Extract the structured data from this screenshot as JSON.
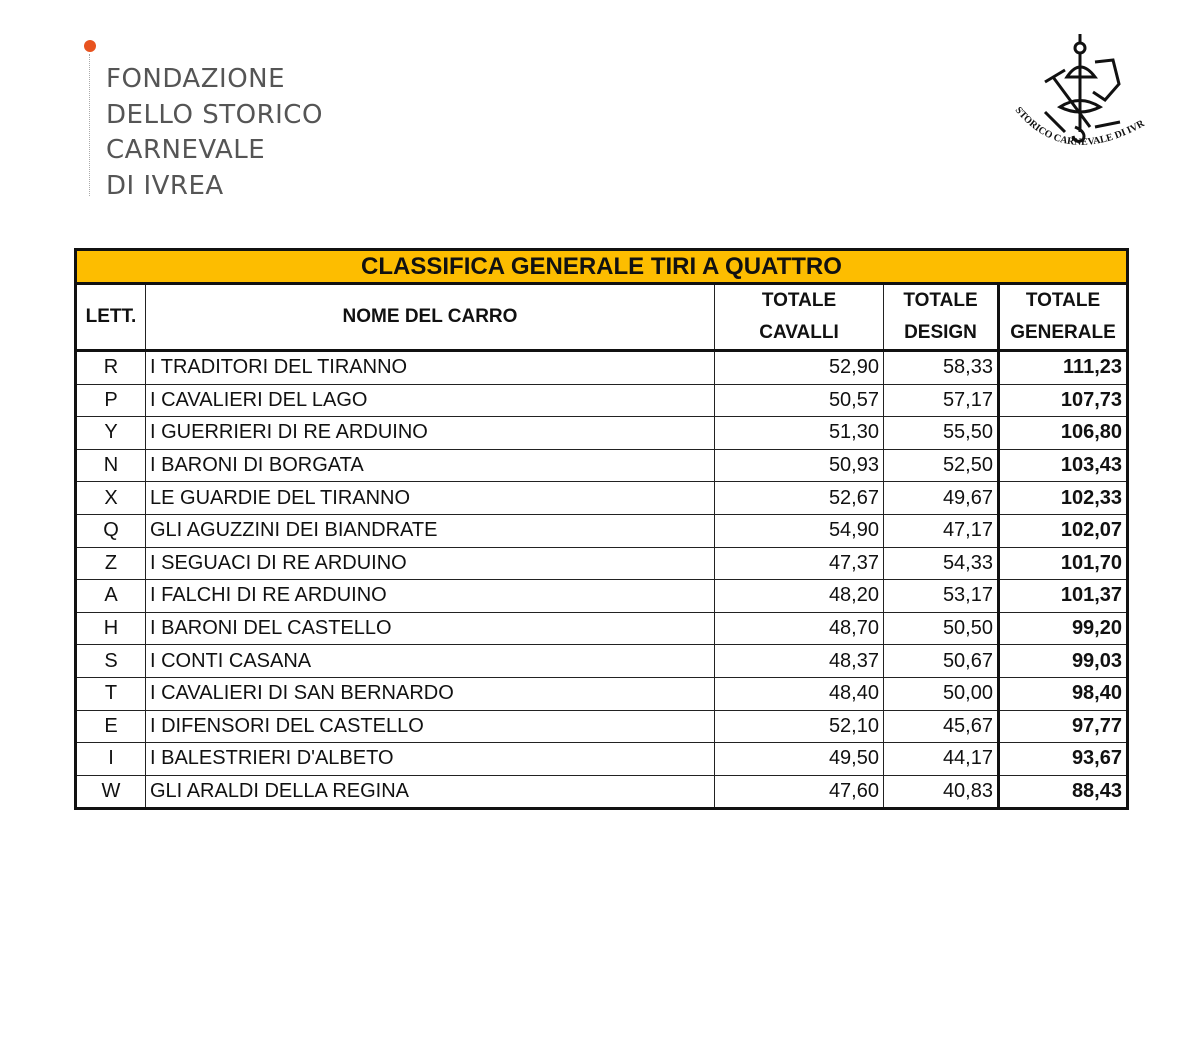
{
  "header": {
    "org_lines": [
      "FONDAZIONE",
      "DELLO STORICO",
      "CARNEVALE",
      "DI IVREA"
    ],
    "accent_color": "#e8531f",
    "seal_text": "STORICO CARNEVALE DI IVREA"
  },
  "table": {
    "title": "CLASSIFICA GENERALE TIRI A QUATTRO",
    "title_bg": "#fdbd00",
    "columns": {
      "lett": "LETT.",
      "nome": "NOME DEL CARRO",
      "cavalli": [
        "TOTALE",
        "CAVALLI"
      ],
      "design": [
        "TOTALE",
        "DESIGN"
      ],
      "generale": [
        "TOTALE",
        "GENERALE"
      ]
    },
    "rows": [
      [
        "R",
        "I TRADITORI DEL TIRANNO",
        "52,90",
        "58,33",
        "111,23"
      ],
      [
        "P",
        "I CAVALIERI DEL LAGO",
        "50,57",
        "57,17",
        "107,73"
      ],
      [
        "Y",
        "I GUERRIERI DI RE ARDUINO",
        "51,30",
        "55,50",
        "106,80"
      ],
      [
        "N",
        "I BARONI DI BORGATA",
        "50,93",
        "52,50",
        "103,43"
      ],
      [
        "X",
        "LE GUARDIE DEL TIRANNO",
        "52,67",
        "49,67",
        "102,33"
      ],
      [
        "Q",
        "GLI AGUZZINI DEI BIANDRATE",
        "54,90",
        "47,17",
        "102,07"
      ],
      [
        "Z",
        "I SEGUACI DI RE ARDUINO",
        "47,37",
        "54,33",
        "101,70"
      ],
      [
        "A",
        "I FALCHI DI RE ARDUINO",
        "48,20",
        "53,17",
        "101,37"
      ],
      [
        "H",
        "I BARONI DEL CASTELLO",
        "48,70",
        "50,50",
        "99,20"
      ],
      [
        "S",
        "I CONTI CASANA",
        "48,37",
        "50,67",
        "99,03"
      ],
      [
        "T",
        "I CAVALIERI DI SAN BERNARDO",
        "48,40",
        "50,00",
        "98,40"
      ],
      [
        "E",
        "I DIFENSORI DEL CASTELLO",
        "52,10",
        "45,67",
        "97,77"
      ],
      [
        "I",
        "I BALESTRIERI D'ALBETO",
        "49,50",
        "44,17",
        "93,67"
      ],
      [
        "W",
        "GLI ARALDI DELLA REGINA",
        "47,60",
        "40,83",
        "88,43"
      ]
    ]
  }
}
